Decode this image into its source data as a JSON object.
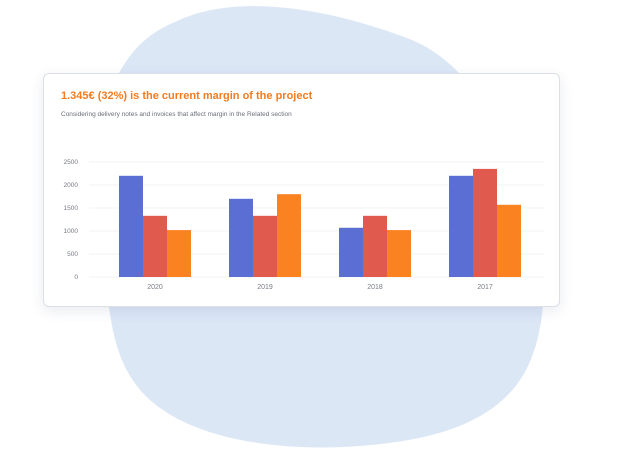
{
  "card": {
    "title": "1.345€ (32%) is the current margin of the project",
    "subtitle": "Considering delivery notes and invoices that affect margin in the Related section"
  },
  "colors": {
    "blob": "#dce7f6",
    "title": "#f47b1f",
    "series": [
      "#5b6ed3",
      "#e05a4e",
      "#fb8221"
    ],
    "grid": "#eef0f3"
  },
  "chart_data": {
    "type": "bar",
    "categories": [
      "2020",
      "2019",
      "2018",
      "2017"
    ],
    "series": [
      {
        "values": [
          2200,
          1700,
          1070,
          2200
        ]
      },
      {
        "values": [
          1330,
          1330,
          1330,
          2350
        ]
      },
      {
        "values": [
          1020,
          1800,
          1020,
          1570
        ]
      }
    ],
    "yticks": [
      0,
      500,
      1000,
      1500,
      2000,
      2500
    ],
    "ylim": [
      0,
      2500
    ],
    "grid": true
  }
}
